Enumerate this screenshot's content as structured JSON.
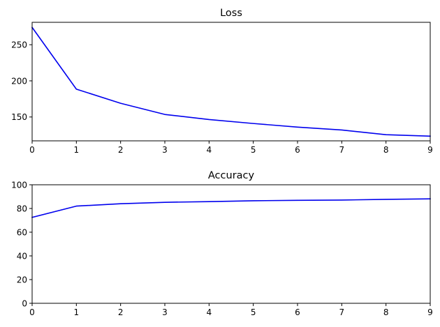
{
  "chart_data": [
    {
      "type": "line",
      "title": "Loss",
      "xlabel": "",
      "ylabel": "",
      "x": [
        0,
        1,
        2,
        3,
        4,
        5,
        6,
        7,
        8,
        9
      ],
      "xlim": [
        0,
        9
      ],
      "ylim": [
        117,
        281
      ],
      "xticks": [
        0,
        1,
        2,
        3,
        4,
        5,
        6,
        7,
        8,
        9
      ],
      "yticks": [
        150,
        200,
        250
      ],
      "grid": false,
      "color": "#0000ee",
      "series": [
        {
          "values": [
            274,
            188.5,
            169,
            153.5,
            146.5,
            141,
            136,
            132,
            125.5,
            123.5
          ]
        }
      ]
    },
    {
      "type": "line",
      "title": "Accuracy",
      "xlabel": "",
      "ylabel": "",
      "x": [
        0,
        1,
        2,
        3,
        4,
        5,
        6,
        7,
        8,
        9
      ],
      "xlim": [
        0,
        9
      ],
      "ylim": [
        0,
        100
      ],
      "xticks": [
        0,
        1,
        2,
        3,
        4,
        5,
        6,
        7,
        8,
        9
      ],
      "yticks": [
        0,
        20,
        40,
        60,
        80,
        100
      ],
      "grid": false,
      "color": "#0000ee",
      "series": [
        {
          "values": [
            72.5,
            82,
            84,
            85.2,
            85.8,
            86.5,
            86.9,
            87.1,
            87.7,
            88.1
          ]
        }
      ]
    }
  ]
}
